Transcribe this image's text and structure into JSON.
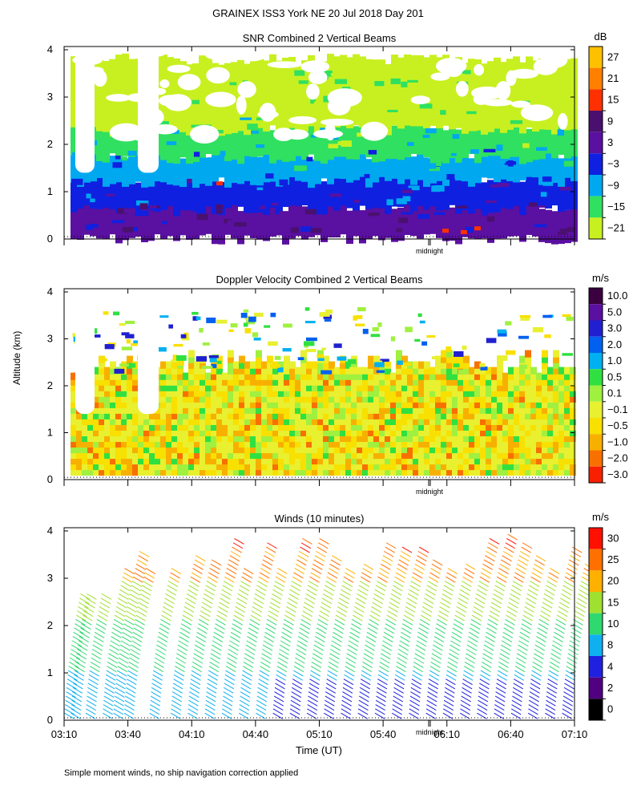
{
  "title": "GRAINEX ISS3 York NE  20 Jul 2018 Day 201",
  "y_axis_label": "Altitude (km)",
  "x_axis_label": "Time (UT)",
  "midnight_label": "midnight",
  "footnote": "Simple moment winds, no ship navigation correction applied",
  "x_ticks": [
    "03:10",
    "03:40",
    "04:10",
    "04:40",
    "05:10",
    "05:40",
    "06:10",
    "06:40",
    "07:10"
  ],
  "chart_data": [
    {
      "type": "heatmap",
      "title": "SNR Combined 2 Vertical Beams",
      "ylabel": "Altitude (km)",
      "ylim": [
        0,
        4
      ],
      "y_ticks": [
        "0",
        "1",
        "2",
        "3",
        "4"
      ],
      "colorbar_unit": "dB",
      "colorbar_labels": [
        "27",
        "21",
        "15",
        "9",
        "3",
        "−3",
        "−9",
        "−15",
        "−21"
      ],
      "colorbar_colors": [
        "#ffc000",
        "#ff8000",
        "#ff3000",
        "#4a1070",
        "#5a10a0",
        "#1020e0",
        "#00a8f0",
        "#30e060",
        "#c8f020"
      ],
      "layers_by_altitude_km": [
        {
          "from": 0.1,
          "to": 0.7,
          "color_index": 4
        },
        {
          "from": 0.7,
          "to": 1.3,
          "color_index": 5
        },
        {
          "from": 1.3,
          "to": 1.8,
          "color_index": 6
        },
        {
          "from": 1.8,
          "to": 2.4,
          "color_index": 7
        },
        {
          "from": 2.4,
          "to": 3.8,
          "color_index": 8
        }
      ]
    },
    {
      "type": "heatmap",
      "title": "Doppler Velocity Combined 2 Vertical Beams",
      "ylabel": "Altitude (km)",
      "ylim": [
        0,
        4
      ],
      "y_ticks": [
        "0",
        "1",
        "2",
        "3",
        "4"
      ],
      "colorbar_unit": "m/s",
      "colorbar_labels": [
        "10.0",
        "5.0",
        "3.0",
        "2.0",
        "1.0",
        "0.5",
        "0.1",
        "−0.1",
        "−0.5",
        "−1.0",
        "−2.0",
        "−3.0"
      ],
      "colorbar_colors": [
        "#3a0040",
        "#5a10a0",
        "#2020d0",
        "#0060f0",
        "#00b0f0",
        "#30e040",
        "#a0f040",
        "#e8f030",
        "#f8e000",
        "#f8b000",
        "#f87000",
        "#f82000"
      ]
    },
    {
      "type": "barbs",
      "title": "Winds (10 minutes)",
      "ylabel": "Altitude (km)",
      "ylim": [
        0,
        4
      ],
      "y_ticks": [
        "0",
        "1",
        "2",
        "3",
        "4"
      ],
      "colorbar_unit": "m/s",
      "colorbar_labels": [
        "30",
        "25",
        "20",
        "15",
        "10",
        "8",
        "4",
        "2",
        "0"
      ],
      "colorbar_colors": [
        "#ff1000",
        "#ff7000",
        "#ffb000",
        "#a0e030",
        "#30d870",
        "#10b0f0",
        "#2020e0",
        "#500080",
        "#000000"
      ],
      "profile_times": [
        "03:10",
        "03:13",
        "03:20",
        "03:28",
        "03:33",
        "03:38",
        "03:50",
        "04:00",
        "04:08",
        "04:16",
        "04:24",
        "04:32",
        "04:40",
        "04:48",
        "04:56",
        "05:04",
        "05:12",
        "05:20",
        "05:28",
        "05:36",
        "05:44",
        "05:52",
        "06:00",
        "06:08",
        "06:16",
        "06:24",
        "06:32",
        "06:40",
        "06:48",
        "06:56",
        "07:04"
      ]
    }
  ]
}
